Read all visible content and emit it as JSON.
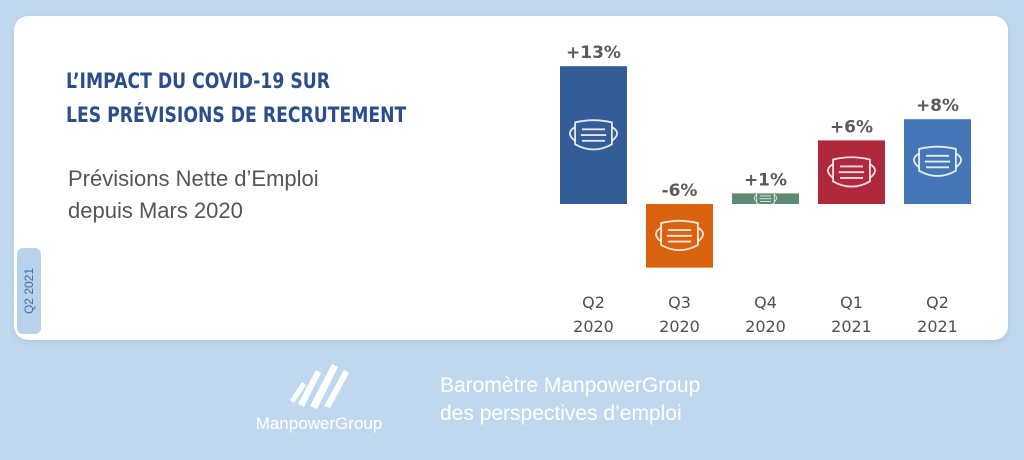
{
  "header": {
    "title_line1": "L’IMPACT DU COVID-19 SUR",
    "title_line2": "LES PRÉVISIONS DE RECRUTEMENT",
    "subtitle_line1": "Prévisions Nette d’Emploi",
    "subtitle_line2": "depuis Mars 2020"
  },
  "side_tab": {
    "label": "Q2 2021"
  },
  "footer": {
    "brand": "ManpowerGroup",
    "tagline_line1": "Baromètre ManpowerGroup",
    "tagline_line2": "des perspectives d’emploi"
  },
  "icons": {
    "bar_icon": "face-mask-icon",
    "logo_icon": "manpowergroup-logo-icon"
  },
  "colors": {
    "background": "#c0d8ee",
    "title": "#2a4e8a"
  },
  "chart_data": {
    "type": "bar",
    "categories": [
      [
        "Q2",
        "2020"
      ],
      [
        "Q3",
        "2020"
      ],
      [
        "Q4",
        "2020"
      ],
      [
        "Q1",
        "2021"
      ],
      [
        "Q2",
        "2021"
      ]
    ],
    "values": [
      13,
      -6,
      1,
      6,
      8
    ],
    "value_labels": [
      "+13%",
      "-6%",
      "+1%",
      "+6%",
      "+8%"
    ],
    "colors": [
      "#345c96",
      "#d9620f",
      "#5d8a72",
      "#b0283b",
      "#4577b8"
    ],
    "ylim": [
      -6,
      13
    ],
    "grid": false,
    "legend": "none"
  }
}
